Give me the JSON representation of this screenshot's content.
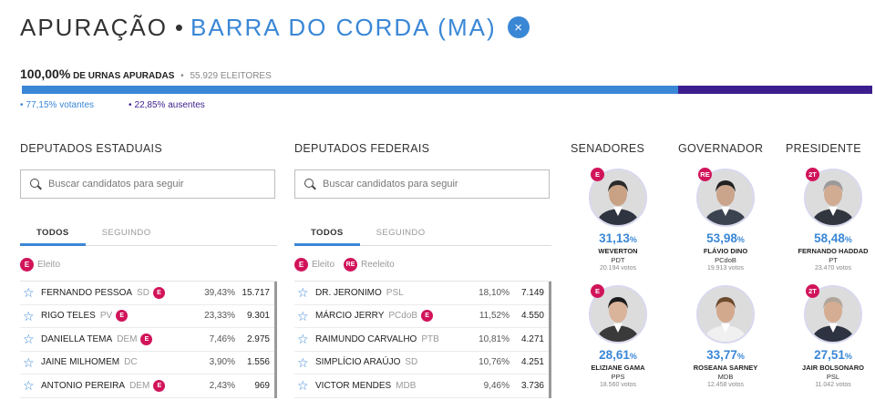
{
  "header": {
    "title": "APURAÇÃO",
    "separator": "•",
    "city": "BARRA DO CORDA (MA)",
    "close_icon": "×"
  },
  "summary": {
    "percent": "100,00%",
    "label": "DE URNAS APURADAS",
    "separator": "•",
    "electors": "55.929 ELEITORES"
  },
  "turnout": {
    "voters_fraction": 0.7715,
    "colors": {
      "voters": "#3a87d6",
      "absent": "#3c1e8f"
    }
  },
  "legend": {
    "voters": "77,15% votantes",
    "absent": "22,85% ausentes"
  },
  "estaduais": {
    "title": "DEPUTADOS ESTADUAIS",
    "search_placeholder": "Buscar candidatos para seguir",
    "tabs": [
      "TODOS",
      "SEGUINDO"
    ],
    "elected_label": "Eleito",
    "rows": [
      {
        "name": "FERNANDO PESSOA",
        "party": "SD",
        "badge": "E",
        "percent": "39,43%",
        "votes": "15.717"
      },
      {
        "name": "RIGO TELES",
        "party": "PV",
        "badge": "E",
        "percent": "23,33%",
        "votes": "9.301"
      },
      {
        "name": "DANIELLA TEMA",
        "party": "DEM",
        "badge": "E",
        "percent": "7,46%",
        "votes": "2.975"
      },
      {
        "name": "JAINE MILHOMEM",
        "party": "DC",
        "badge": "",
        "percent": "3,90%",
        "votes": "1.556"
      },
      {
        "name": "ANTONIO PEREIRA",
        "party": "DEM",
        "badge": "E",
        "percent": "2,43%",
        "votes": "969"
      }
    ]
  },
  "federais": {
    "title": "DEPUTADOS FEDERAIS",
    "search_placeholder": "Buscar candidatos para seguir",
    "tabs": [
      "TODOS",
      "SEGUINDO"
    ],
    "elected_label": "Eleito",
    "reelected_label": "Reeleito",
    "rows": [
      {
        "name": "DR. JERONIMO",
        "party": "PSL",
        "badge": "",
        "percent": "18,10%",
        "votes": "7.149"
      },
      {
        "name": "MÁRCIO JERRY",
        "party": "PCdoB",
        "badge": "E",
        "percent": "11,52%",
        "votes": "4.550"
      },
      {
        "name": "RAIMUNDO CARVALHO",
        "party": "PTB",
        "badge": "",
        "percent": "10,81%",
        "votes": "4.271"
      },
      {
        "name": "SIMPLÍCIO ARAÚJO",
        "party": "SD",
        "badge": "",
        "percent": "10,76%",
        "votes": "4.251"
      },
      {
        "name": "VICTOR MENDES",
        "party": "MDB",
        "badge": "",
        "percent": "9,46%",
        "votes": "3.736"
      }
    ]
  },
  "badges": {
    "elected": "E",
    "reelected": "RE",
    "second_round": "2T"
  },
  "senadores": {
    "title": "SENADORES",
    "cards": [
      {
        "badge": "E",
        "percent": "31,13",
        "unit": "%",
        "name": "WEVERTON",
        "party": "PDT",
        "votes": "20.194 votos"
      },
      {
        "badge": "E",
        "percent": "28,61",
        "unit": "%",
        "name": "ELIZIANE GAMA",
        "party": "PPS",
        "votes": "18.560 votos"
      }
    ]
  },
  "governador": {
    "title": "GOVERNADOR",
    "cards": [
      {
        "badge": "RE",
        "percent": "53,98",
        "unit": "%",
        "name": "FLÁVIO DINO",
        "party": "PCdoB",
        "votes": "19.913 votos"
      },
      {
        "badge": "",
        "percent": "33,77",
        "unit": "%",
        "name": "ROSEANA SARNEY",
        "party": "MDB",
        "votes": "12.458 votos"
      }
    ]
  },
  "presidente": {
    "title": "PRESIDENTE",
    "cards": [
      {
        "badge": "2T",
        "percent": "58,48",
        "unit": "%",
        "name": "FERNANDO HADDAD",
        "party": "PT",
        "votes": "23.470 votos"
      },
      {
        "badge": "2T",
        "percent": "27,51",
        "unit": "%",
        "name": "JAIR BOLSONARO",
        "party": "PSL",
        "votes": "11.042 votos"
      }
    ]
  }
}
